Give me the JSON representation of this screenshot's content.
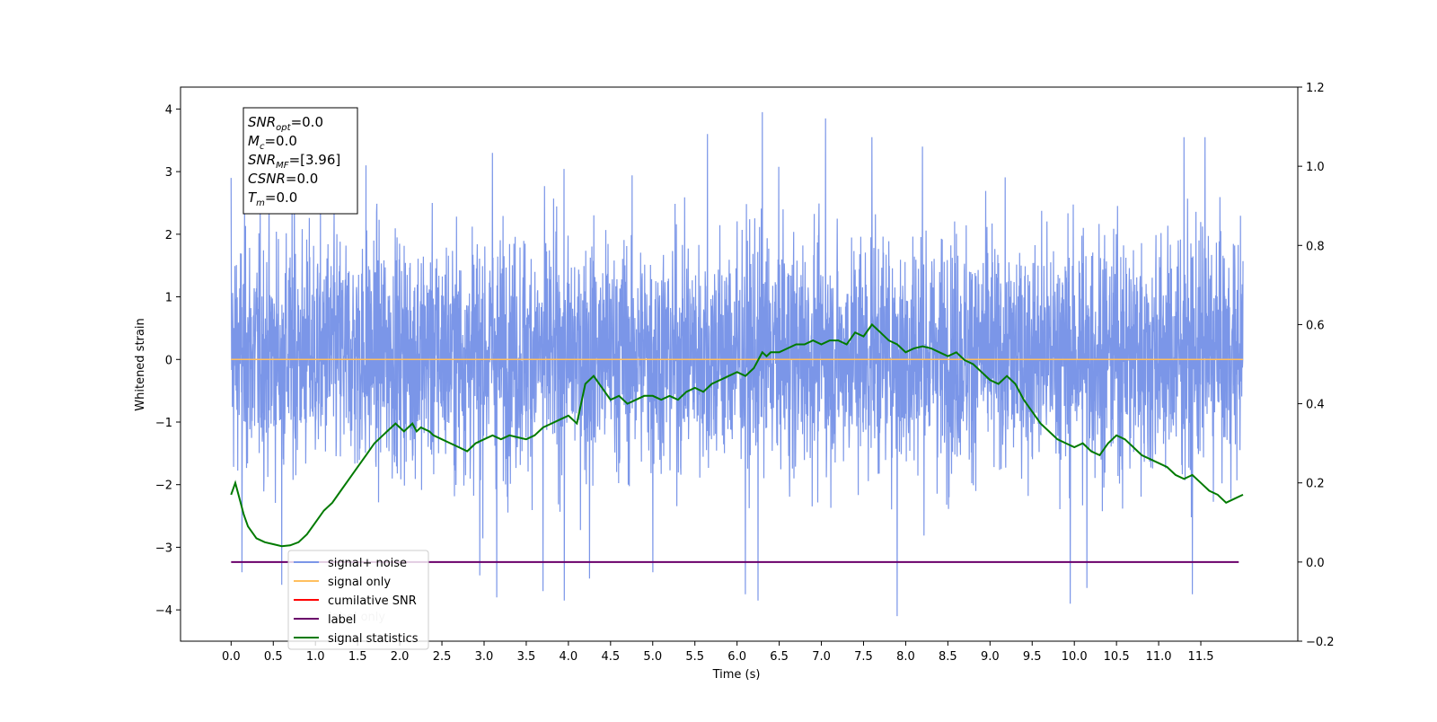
{
  "chart_data": {
    "type": "line",
    "xlabel": "Time (s)",
    "ylabel": "Whitened strain",
    "xlim": [
      -0.6,
      12.65
    ],
    "ylim": [
      -4.5,
      4.35
    ],
    "y2lim": [
      -0.2,
      1.2
    ],
    "x_ticks": [
      0.0,
      0.5,
      1.0,
      1.5,
      2.0,
      2.5,
      3.0,
      3.5,
      4.0,
      4.5,
      5.0,
      5.5,
      6.0,
      6.5,
      7.0,
      7.5,
      8.0,
      8.5,
      9.0,
      9.5,
      10.0,
      10.5,
      11.0,
      11.5
    ],
    "x_tick_labels": [
      "0.0",
      "0.5",
      "1.0",
      "1.5",
      "2.0",
      "2.5",
      "3.0",
      "3.5",
      "4.0",
      "4.5",
      "5.0",
      "5.5",
      "6.0",
      "6.5",
      "7.0",
      "7.5",
      "8.0",
      "8.5",
      "9.0",
      "9.5",
      "10.0",
      "10.5",
      "11.0",
      "11.5"
    ],
    "y_ticks": [
      -4,
      -3,
      -2,
      -1,
      0,
      1,
      2,
      3,
      4
    ],
    "y_tick_labels": [
      "−4",
      "−3",
      "−2",
      "−1",
      "0",
      "1",
      "2",
      "3",
      "4"
    ],
    "y2_ticks": [
      -0.2,
      0.0,
      0.2,
      0.4,
      0.6,
      0.8,
      1.0,
      1.2
    ],
    "y2_tick_labels": [
      "−0.2",
      "0.0",
      "0.2",
      "0.4",
      "0.6",
      "0.8",
      "1.0",
      "1.2"
    ],
    "grid": false,
    "legend_position": "lower-left",
    "series": [
      {
        "name": "signal+ noise",
        "axis": "left",
        "color": "#7b96e8",
        "x_range": [
          0.0,
          12.0
        ],
        "noise_envelope": {
          "typical_low": -2.3,
          "typical_high": 2.5
        },
        "peaks": [
          {
            "x": 0.0,
            "y": 2.9
          },
          {
            "x": 0.75,
            "y": 3.1
          },
          {
            "x": 1.6,
            "y": 3.1
          },
          {
            "x": 3.1,
            "y": 3.3
          },
          {
            "x": 5.65,
            "y": 3.6
          },
          {
            "x": 6.3,
            "y": 3.95
          },
          {
            "x": 7.05,
            "y": 3.85
          },
          {
            "x": 7.6,
            "y": 3.55
          },
          {
            "x": 8.2,
            "y": 3.4
          },
          {
            "x": 9.95,
            "y": 3.35
          },
          {
            "x": 11.3,
            "y": 3.55
          },
          {
            "x": 11.55,
            "y": 3.55
          }
        ],
        "troughs": [
          {
            "x": 0.13,
            "y": -3.4
          },
          {
            "x": 0.6,
            "y": -3.6
          },
          {
            "x": 2.95,
            "y": -3.45
          },
          {
            "x": 3.15,
            "y": -3.8
          },
          {
            "x": 3.7,
            "y": -3.7
          },
          {
            "x": 3.95,
            "y": -3.85
          },
          {
            "x": 4.25,
            "y": -3.5
          },
          {
            "x": 5.0,
            "y": -3.4
          },
          {
            "x": 6.1,
            "y": -3.75
          },
          {
            "x": 6.25,
            "y": -3.85
          },
          {
            "x": 7.9,
            "y": -4.1
          },
          {
            "x": 9.95,
            "y": -3.9
          },
          {
            "x": 10.15,
            "y": -3.65
          },
          {
            "x": 11.4,
            "y": -3.75
          }
        ]
      },
      {
        "name": "signal only",
        "axis": "left",
        "color": "#ffbf5f",
        "x": [
          0.0,
          12.0
        ],
        "y": [
          0.0,
          0.0
        ]
      },
      {
        "name": "cumilative SNR",
        "axis": "left",
        "color": "#ff0000",
        "x": [],
        "y": []
      },
      {
        "name": "label",
        "axis": "right",
        "color": "#6a006a",
        "x": [
          0.0,
          11.95
        ],
        "y": [
          0.0,
          0.0
        ]
      },
      {
        "name": "signal statistics",
        "axis": "right",
        "color": "#007a00",
        "x": [
          0.0,
          0.05,
          0.1,
          0.15,
          0.2,
          0.3,
          0.4,
          0.5,
          0.6,
          0.7,
          0.8,
          0.9,
          1.0,
          1.1,
          1.2,
          1.3,
          1.4,
          1.5,
          1.6,
          1.7,
          1.8,
          1.85,
          1.9,
          1.95,
          2.0,
          2.05,
          2.1,
          2.15,
          2.2,
          2.25,
          2.3,
          2.35,
          2.4,
          2.5,
          2.6,
          2.7,
          2.8,
          2.9,
          3.0,
          3.1,
          3.2,
          3.3,
          3.4,
          3.5,
          3.6,
          3.7,
          3.8,
          3.9,
          4.0,
          4.1,
          4.2,
          4.3,
          4.4,
          4.5,
          4.6,
          4.7,
          4.8,
          4.9,
          5.0,
          5.1,
          5.2,
          5.3,
          5.4,
          5.5,
          5.6,
          5.7,
          5.8,
          5.9,
          6.0,
          6.1,
          6.2,
          6.3,
          6.35,
          6.4,
          6.5,
          6.6,
          6.7,
          6.8,
          6.9,
          7.0,
          7.1,
          7.2,
          7.3,
          7.4,
          7.5,
          7.6,
          7.7,
          7.8,
          7.9,
          8.0,
          8.1,
          8.2,
          8.3,
          8.4,
          8.5,
          8.6,
          8.7,
          8.8,
          8.9,
          9.0,
          9.1,
          9.2,
          9.3,
          9.4,
          9.5,
          9.6,
          9.7,
          9.8,
          9.9,
          10.0,
          10.1,
          10.2,
          10.3,
          10.4,
          10.5,
          10.6,
          10.7,
          10.8,
          10.9,
          11.0,
          11.1,
          11.2,
          11.3,
          11.4,
          11.5,
          11.6,
          11.7,
          11.8,
          11.9,
          12.0
        ],
        "y": [
          0.17,
          0.2,
          0.16,
          0.12,
          0.09,
          0.06,
          0.05,
          0.045,
          0.04,
          0.042,
          0.05,
          0.07,
          0.1,
          0.13,
          0.15,
          0.18,
          0.21,
          0.24,
          0.27,
          0.3,
          0.32,
          0.33,
          0.34,
          0.35,
          0.34,
          0.33,
          0.34,
          0.35,
          0.33,
          0.34,
          0.335,
          0.33,
          0.32,
          0.31,
          0.3,
          0.29,
          0.28,
          0.3,
          0.31,
          0.32,
          0.31,
          0.32,
          0.315,
          0.31,
          0.32,
          0.34,
          0.35,
          0.36,
          0.37,
          0.35,
          0.45,
          0.47,
          0.44,
          0.41,
          0.42,
          0.4,
          0.41,
          0.42,
          0.42,
          0.41,
          0.42,
          0.41,
          0.43,
          0.44,
          0.43,
          0.45,
          0.46,
          0.47,
          0.48,
          0.47,
          0.49,
          0.53,
          0.52,
          0.53,
          0.53,
          0.54,
          0.55,
          0.55,
          0.56,
          0.55,
          0.56,
          0.56,
          0.55,
          0.58,
          0.57,
          0.6,
          0.58,
          0.56,
          0.55,
          0.53,
          0.54,
          0.545,
          0.54,
          0.53,
          0.52,
          0.53,
          0.51,
          0.5,
          0.48,
          0.46,
          0.45,
          0.47,
          0.45,
          0.41,
          0.38,
          0.35,
          0.33,
          0.31,
          0.3,
          0.29,
          0.3,
          0.28,
          0.27,
          0.3,
          0.32,
          0.31,
          0.29,
          0.27,
          0.26,
          0.25,
          0.24,
          0.22,
          0.21,
          0.22,
          0.2,
          0.18,
          0.17,
          0.15,
          0.16,
          0.17
        ]
      }
    ],
    "info_box": [
      {
        "base": "SNR",
        "sub": "opt",
        "value": "=0.0"
      },
      {
        "base": "M",
        "sub": "c",
        "value": "=0.0"
      },
      {
        "base": "SNR",
        "sub": "MF",
        "value": "=[3.96]"
      },
      {
        "base": "CSNR",
        "sub": "",
        "value": "=0.0"
      },
      {
        "base": "T",
        "sub": "m",
        "value": "=0.0"
      }
    ],
    "legend_overlap_text": "label only"
  }
}
